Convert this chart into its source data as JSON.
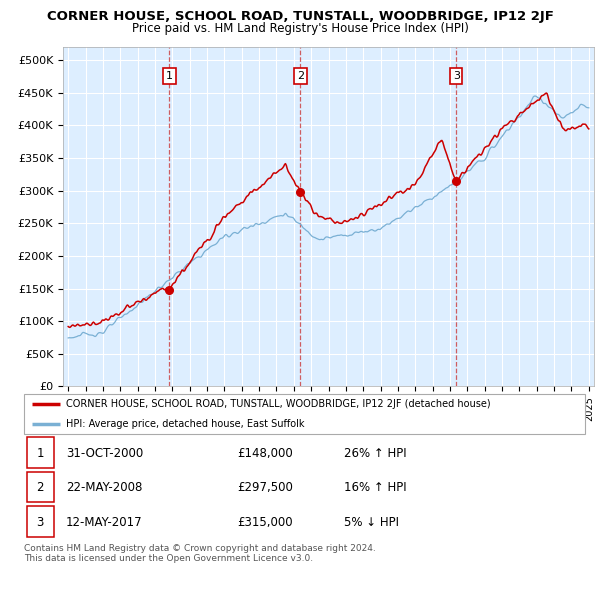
{
  "title": "CORNER HOUSE, SCHOOL ROAD, TUNSTALL, WOODBRIDGE, IP12 2JF",
  "subtitle": "Price paid vs. HM Land Registry's House Price Index (HPI)",
  "ylim": [
    0,
    520000
  ],
  "yticks": [
    0,
    50000,
    100000,
    150000,
    200000,
    250000,
    300000,
    350000,
    400000,
    450000,
    500000
  ],
  "ytick_labels": [
    "£0",
    "£50K",
    "£100K",
    "£150K",
    "£200K",
    "£250K",
    "£300K",
    "£350K",
    "£400K",
    "£450K",
    "£500K"
  ],
  "xlim_start": 1994.7,
  "xlim_end": 2025.3,
  "xtick_years": [
    1995,
    1996,
    1997,
    1998,
    1999,
    2000,
    2001,
    2002,
    2003,
    2004,
    2005,
    2006,
    2007,
    2008,
    2009,
    2010,
    2011,
    2012,
    2013,
    2014,
    2015,
    2016,
    2017,
    2018,
    2019,
    2020,
    2021,
    2022,
    2023,
    2024,
    2025
  ],
  "sale_dates": [
    2000.83,
    2008.38,
    2017.36
  ],
  "sale_prices": [
    148000,
    297500,
    315000
  ],
  "sale_labels": [
    "1",
    "2",
    "3"
  ],
  "legend_line1": "CORNER HOUSE, SCHOOL ROAD, TUNSTALL, WOODBRIDGE, IP12 2JF (detached house)",
  "legend_line2": "HPI: Average price, detached house, East Suffolk",
  "table_rows": [
    {
      "num": "1",
      "date": "31-OCT-2000",
      "price": "£148,000",
      "hpi": "26% ↑ HPI"
    },
    {
      "num": "2",
      "date": "22-MAY-2008",
      "price": "£297,500",
      "hpi": "16% ↑ HPI"
    },
    {
      "num": "3",
      "date": "12-MAY-2017",
      "price": "£315,000",
      "hpi": "5% ↓ HPI"
    }
  ],
  "footer": "Contains HM Land Registry data © Crown copyright and database right 2024.\nThis data is licensed under the Open Government Licence v3.0.",
  "red_color": "#cc0000",
  "blue_color": "#7ab0d4",
  "bg_color": "#ddeeff",
  "plot_bg": "#ffffff"
}
